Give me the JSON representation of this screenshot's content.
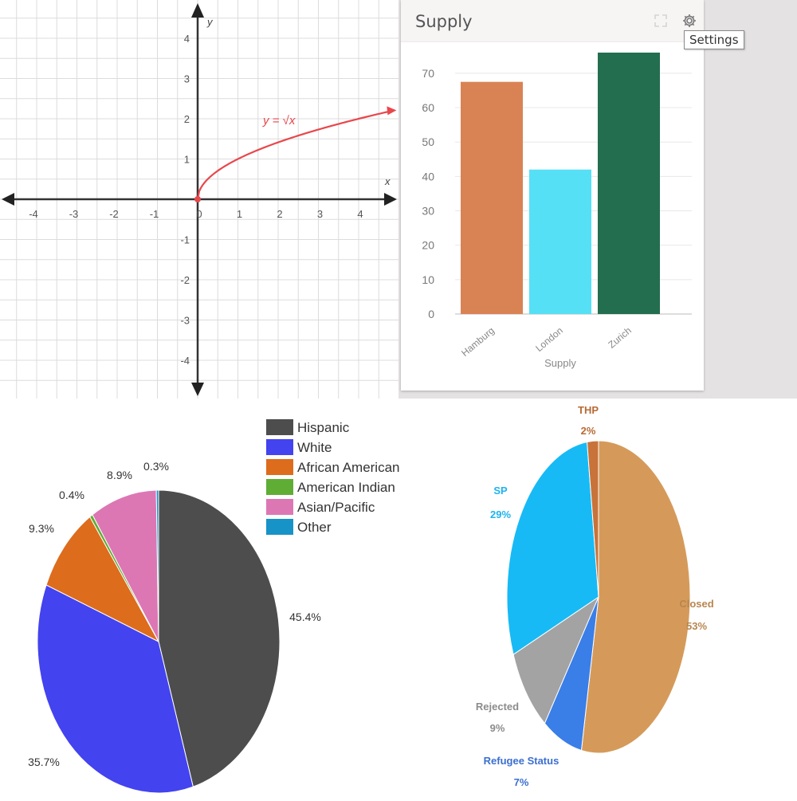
{
  "function_plot": {
    "chart_data": {
      "type": "line",
      "xlabel": "x",
      "ylabel": "y",
      "xlim": [
        -4.9,
        4.9
      ],
      "ylim": [
        -4.9,
        4.9
      ],
      "x_ticks": [
        "-4",
        "-3",
        "-2",
        "-1",
        "0",
        "1",
        "2",
        "3",
        "4"
      ],
      "y_ticks": [
        "4",
        "3",
        "2",
        "1",
        "-1",
        "-2",
        "-3",
        "-4"
      ],
      "grid": true,
      "series": [
        {
          "name": "y = √x",
          "x": [
            0,
            0.25,
            0.5,
            1,
            1.5,
            2,
            2.5,
            3,
            3.5,
            4,
            4.5,
            4.8
          ],
          "y": [
            0,
            0.5,
            0.71,
            1,
            1.22,
            1.41,
            1.58,
            1.73,
            1.87,
            2,
            2.12,
            2.19
          ],
          "color": "#e8474c"
        }
      ]
    }
  },
  "supply_widget": {
    "title": "Supply",
    "tooltip": "Settings",
    "icons": [
      "expand-icon",
      "gear-icon"
    ],
    "chart_data": {
      "type": "bar",
      "categories": [
        "Hamburg",
        "London",
        "Zurich"
      ],
      "values": [
        67.5,
        42,
        76
      ],
      "colors": [
        "#d98355",
        "#55e0f5",
        "#236e4f"
      ],
      "xlabel": "Supply",
      "ylabel": "",
      "ylim": [
        0,
        76
      ],
      "y_ticks": [
        "0",
        "10",
        "20",
        "30",
        "40",
        "50",
        "60",
        "70"
      ],
      "grid": true
    }
  },
  "ethnicity_pie": {
    "chart_data": {
      "type": "pie",
      "legend": "top-right",
      "slices": [
        {
          "label": "Hispanic",
          "value": 45.4,
          "text": "45.4%",
          "color": "#4d4d4d"
        },
        {
          "label": "White",
          "value": 35.7,
          "text": "35.7%",
          "color": "#4343ef"
        },
        {
          "label": "African American",
          "value": 9.3,
          "text": "9.3%",
          "color": "#dd6c1d"
        },
        {
          "label": "American Indian",
          "value": 0.4,
          "text": "0.4%",
          "color": "#5fad35"
        },
        {
          "label": "Asian/Pacific",
          "value": 8.9,
          "text": "8.9%",
          "color": "#dc77b4"
        },
        {
          "label": "Other",
          "value": 0.3,
          "text": "0.3%",
          "color": "#1893c7"
        }
      ]
    }
  },
  "status_pie": {
    "chart_data": {
      "type": "pie",
      "slices": [
        {
          "label": "Closed",
          "value": 53,
          "text": "53%",
          "color": "#d59a5a",
          "label_color": "#b8864f"
        },
        {
          "label": "Refugee Status",
          "value": 7,
          "text": "7%",
          "color": "#3a7ee8",
          "label_color": "#3b6fd0"
        },
        {
          "label": "Rejected",
          "value": 9,
          "text": "9%",
          "color": "#a3a3a3",
          "label_color": "#8c8c8c"
        },
        {
          "label": "SP",
          "value": 29,
          "text": "29%",
          "color": "#17baf5",
          "label_color": "#1fb3ee"
        },
        {
          "label": "THP",
          "value": 2,
          "text": "2%",
          "color": "#c8733a",
          "label_color": "#b86a34"
        }
      ]
    }
  }
}
